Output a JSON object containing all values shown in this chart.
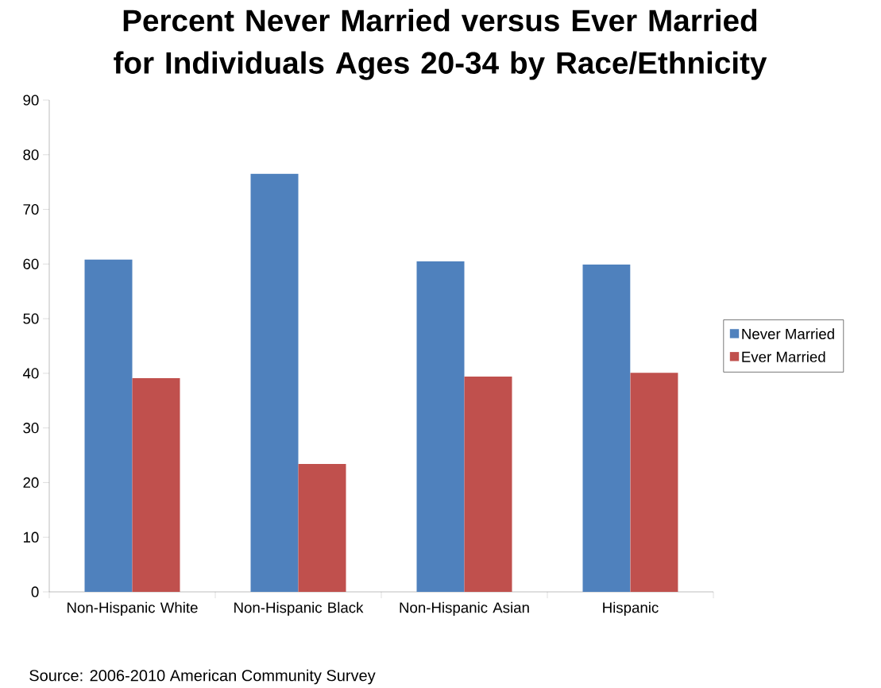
{
  "chart_data": {
    "type": "bar",
    "title": "Percent Never Married versus Ever Married for Individuals Ages 20-34 by Race/Ethnicity",
    "categories": [
      "Non-Hispanic White",
      "Non-Hispanic Black",
      "Non-Hispanic Asian",
      "Hispanic"
    ],
    "series": [
      {
        "name": "Never Married",
        "color": "#4f81bd",
        "values": [
          60.8,
          76.5,
          60.5,
          59.9
        ]
      },
      {
        "name": "Ever Married",
        "color": "#c0504d",
        "values": [
          39.1,
          23.4,
          39.4,
          40.1
        ]
      }
    ],
    "ylim": [
      0,
      90
    ],
    "yticks": [
      0,
      10,
      20,
      30,
      40,
      50,
      60,
      70,
      80,
      90
    ],
    "legend": "right",
    "grid": false,
    "annotations": [
      "Source: 2006-2010 American Community Survey"
    ]
  }
}
